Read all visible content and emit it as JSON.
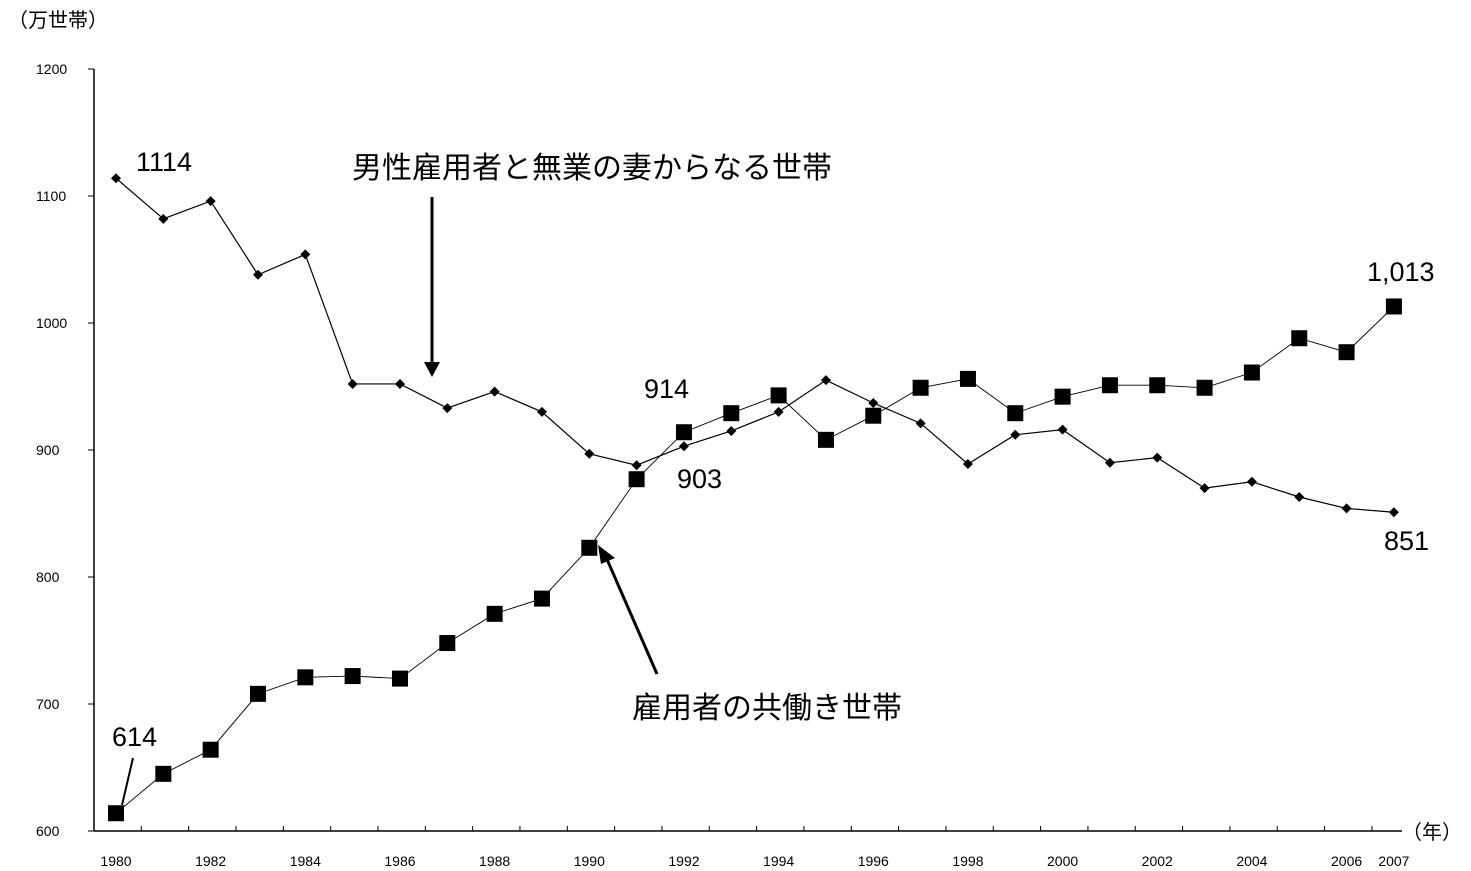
{
  "chart_data": {
    "type": "line",
    "y_unit": "（万世帯）",
    "x_unit": "（年）",
    "ylim": [
      600,
      1200
    ],
    "yticks": [
      600,
      700,
      800,
      900,
      1000,
      1100,
      1200
    ],
    "x": [
      1980,
      1981,
      1982,
      1983,
      1984,
      1985,
      1986,
      1987,
      1988,
      1989,
      1990,
      1991,
      1992,
      1993,
      1994,
      1995,
      1996,
      1997,
      1998,
      1999,
      2000,
      2001,
      2002,
      2003,
      2004,
      2005,
      2006,
      2007
    ],
    "xtick_labels": [
      "1980",
      "1982",
      "1984",
      "1986",
      "1988",
      "1990",
      "1992",
      "1994",
      "1996",
      "1998",
      "2000",
      "2002",
      "2004",
      "2006",
      "2007"
    ],
    "grid": false,
    "series": [
      {
        "name": "男性雇用者と無業の妻からなる世帯",
        "marker": "diamond",
        "color": "#000000",
        "values": [
          1114,
          1082,
          1096,
          1038,
          1054,
          952,
          952,
          933,
          946,
          930,
          897,
          888,
          903,
          915,
          930,
          955,
          937,
          921,
          889,
          912,
          916,
          890,
          894,
          870,
          875,
          863,
          854,
          851
        ]
      },
      {
        "name": "雇用者の共働き世帯",
        "marker": "square",
        "color": "#000000",
        "values": [
          614,
          645,
          664,
          708,
          721,
          722,
          720,
          748,
          771,
          783,
          823,
          877,
          914,
          929,
          943,
          908,
          927,
          949,
          956,
          929,
          942,
          951,
          951,
          949,
          961,
          988,
          977,
          1013
        ]
      }
    ],
    "annotations": [
      {
        "id": "a1114",
        "text": "1114"
      },
      {
        "id": "a614",
        "text": "614"
      },
      {
        "id": "a914",
        "text": "914"
      },
      {
        "id": "a903",
        "text": "903"
      },
      {
        "id": "a1013",
        "text": "1,013"
      },
      {
        "id": "a851",
        "text": "851"
      }
    ]
  }
}
